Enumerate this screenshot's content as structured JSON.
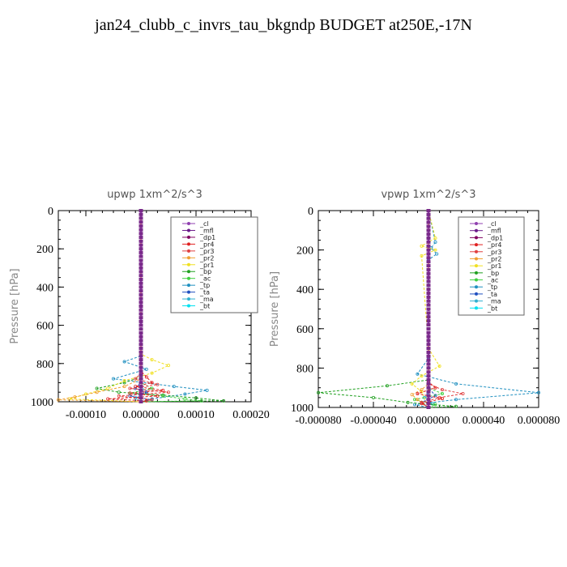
{
  "title": "jan24_clubb_c_invrs_tau_bkgndp  BUDGET at250E,-17N",
  "chart_data": [
    {
      "type": "line",
      "title": "upwp   1xm^2/s^3",
      "ylabel": "Pressure  [hPa]",
      "xlim": [
        -0.00015,
        0.0002
      ],
      "ylim": [
        1000,
        0
      ],
      "xticks": [
        "-0.00010",
        "0.00000",
        "0.00010",
        "0.00020"
      ],
      "xtick_values": [
        -0.0001,
        0,
        0.0001,
        0.0002
      ],
      "yticks": [
        "0",
        "200",
        "400",
        "600",
        "800",
        "1000"
      ],
      "ytick_values": [
        0,
        200,
        400,
        600,
        800,
        1000
      ],
      "legend_position": "top-right",
      "series": [
        {
          "name": "_cl",
          "color": "#9040b0",
          "marker": "*",
          "x": [
            0,
            0
          ],
          "y": [
            0,
            1000
          ]
        },
        {
          "name": "_mfl",
          "color": "#6a1a8a",
          "marker": "*",
          "x": [
            0,
            0
          ],
          "y": [
            0,
            1000
          ]
        },
        {
          "name": "_dp1",
          "color": "#800060",
          "marker": "o",
          "x": [
            0,
            0
          ],
          "y": [
            0,
            1000
          ]
        },
        {
          "name": "_pr4",
          "color": "#e02020",
          "marker": "o",
          "x": [
            0,
            0,
            1e-05,
            2e-05,
            -1e-05,
            4e-05,
            -2e-05,
            3e-05,
            -6e-05,
            1e-05,
            0
          ],
          "y": [
            0,
            840,
            870,
            900,
            920,
            940,
            955,
            970,
            985,
            995,
            1000
          ]
        },
        {
          "name": "_pr3",
          "color": "#e04040",
          "marker": "v",
          "x": [
            0,
            0,
            -1e-05,
            3e-05,
            -2e-05,
            5e-05,
            -4e-05,
            2e-05,
            0
          ],
          "y": [
            0,
            850,
            880,
            910,
            930,
            950,
            970,
            990,
            1000
          ]
        },
        {
          "name": "_pr2",
          "color": "#f0a030",
          "marker": "^",
          "x": [
            0,
            0,
            -3e-05,
            -8e-05,
            -0.00012,
            -0.00015,
            0
          ],
          "y": [
            0,
            880,
            920,
            950,
            975,
            990,
            1000
          ]
        },
        {
          "name": "_pr1",
          "color": "#f0e020",
          "marker": "o",
          "x": [
            0,
            0,
            2e-05,
            5e-05,
            2e-05,
            -3e-05,
            -6e-05,
            -0.0001,
            -0.00013,
            0
          ],
          "y": [
            0,
            750,
            780,
            810,
            850,
            890,
            930,
            960,
            985,
            1000
          ]
        },
        {
          "name": "_bp",
          "color": "#20a020",
          "marker": "*",
          "x": [
            0,
            0,
            -3e-05,
            -8e-05,
            -4e-05,
            4e-05,
            0.0001,
            0.00015,
            0
          ],
          "y": [
            0,
            870,
            900,
            930,
            950,
            965,
            980,
            995,
            1000
          ]
        },
        {
          "name": "_ac",
          "color": "#40d040",
          "marker": "o",
          "x": [
            0,
            0,
            2e-05,
            -2e-05,
            4e-05,
            8e-05,
            0.00011,
            0
          ],
          "y": [
            0,
            900,
            930,
            955,
            970,
            985,
            995,
            1000
          ]
        },
        {
          "name": "_tp",
          "color": "#2090c0",
          "marker": "*",
          "x": [
            0,
            0,
            -3e-05,
            1e-05,
            -5e-05,
            6e-05,
            0.00012,
            8e-05,
            2e-05,
            0
          ],
          "y": [
            0,
            760,
            790,
            830,
            880,
            920,
            940,
            960,
            985,
            1000
          ]
        },
        {
          "name": "_ta",
          "color": "#2050c0",
          "marker": ">",
          "x": [
            0,
            0,
            -1e-05,
            1e-05,
            -2e-05,
            2e-05,
            0
          ],
          "y": [
            0,
            900,
            930,
            950,
            970,
            990,
            1000
          ]
        },
        {
          "name": "_ma",
          "color": "#30b0d0",
          "marker": "-",
          "x": [
            0,
            0,
            1e-05,
            -1e-05,
            0
          ],
          "y": [
            0,
            920,
            950,
            980,
            1000
          ]
        },
        {
          "name": "_bt",
          "color": "#00e0f0",
          "marker": "o",
          "x": [
            0,
            0
          ],
          "y": [
            0,
            1000
          ]
        }
      ]
    },
    {
      "type": "line",
      "title": "vpwp   1xm^2/s^3",
      "ylabel": "Pressure  [hPa]",
      "xlim": [
        -8e-05,
        8e-05
      ],
      "ylim": [
        1000,
        0
      ],
      "xticks": [
        "-0.000080",
        "-0.000040",
        "0.000000",
        "0.000040",
        "0.000080"
      ],
      "xtick_values": [
        -8e-05,
        -4e-05,
        0,
        4e-05,
        8e-05
      ],
      "yticks": [
        "0",
        "200",
        "400",
        "600",
        "800",
        "1000"
      ],
      "ytick_values": [
        0,
        200,
        400,
        600,
        800,
        1000
      ],
      "legend_position": "top-right",
      "series": [
        {
          "name": "_cl",
          "color": "#9040b0",
          "marker": "*",
          "x": [
            0,
            0
          ],
          "y": [
            0,
            1000
          ]
        },
        {
          "name": "_mfl",
          "color": "#6a1a8a",
          "marker": "*",
          "x": [
            0,
            0
          ],
          "y": [
            0,
            1000
          ]
        },
        {
          "name": "_dp1",
          "color": "#800060",
          "marker": "o",
          "x": [
            0,
            0
          ],
          "y": [
            0,
            1000
          ]
        },
        {
          "name": "_pr4",
          "color": "#e02020",
          "marker": "o",
          "x": [
            0,
            0,
            5e-06,
            -8e-06,
            1e-05,
            -5e-06,
            0
          ],
          "y": [
            0,
            870,
            900,
            930,
            955,
            980,
            1000
          ]
        },
        {
          "name": "_pr3",
          "color": "#e04040",
          "marker": "v",
          "x": [
            0,
            0,
            1e-05,
            2.5e-05,
            8e-06,
            -5e-06,
            0
          ],
          "y": [
            0,
            880,
            910,
            930,
            950,
            975,
            1000
          ]
        },
        {
          "name": "_pr2",
          "color": "#f0a030",
          "marker": "^",
          "x": [
            0,
            0,
            -5e-06,
            -1.2e-05,
            -8e-06,
            0
          ],
          "y": [
            0,
            880,
            910,
            935,
            960,
            1000
          ]
        },
        {
          "name": "_pr1",
          "color": "#f0e020",
          "marker": "o",
          "x": [
            0,
            5e-06,
            -5e-06,
            5e-06,
            -5e-06,
            0,
            8e-06,
            -5e-06,
            -1.2e-05,
            -5e-06,
            0
          ],
          "y": [
            0,
            140,
            180,
            200,
            230,
            700,
            790,
            840,
            880,
            920,
            1000
          ]
        },
        {
          "name": "_bp",
          "color": "#20a020",
          "marker": "*",
          "x": [
            0,
            0,
            -3e-05,
            -8e-05,
            -4e-05,
            -1.5e-05,
            2e-05,
            0
          ],
          "y": [
            0,
            860,
            890,
            925,
            950,
            975,
            995,
            1000
          ]
        },
        {
          "name": "_ac",
          "color": "#40d040",
          "marker": "o",
          "x": [
            0,
            0,
            1e-05,
            -1e-05,
            5e-06,
            0
          ],
          "y": [
            0,
            900,
            930,
            960,
            985,
            1000
          ]
        },
        {
          "name": "_tp",
          "color": "#2090c0",
          "marker": "*",
          "x": [
            0,
            5e-06,
            2e-06,
            6e-06,
            0,
            0,
            -8e-06,
            2e-05,
            8e-05,
            2e-05,
            -1e-05,
            0
          ],
          "y": [
            0,
            160,
            190,
            220,
            250,
            750,
            830,
            880,
            925,
            960,
            985,
            1000
          ]
        },
        {
          "name": "_ta",
          "color": "#2050c0",
          "marker": ">",
          "x": [
            0,
            0,
            5e-06,
            -5e-06,
            0
          ],
          "y": [
            0,
            900,
            940,
            975,
            1000
          ]
        },
        {
          "name": "_ma",
          "color": "#30b0d0",
          "marker": "-",
          "x": [
            0,
            0,
            -3e-06,
            3e-06,
            0
          ],
          "y": [
            0,
            920,
            950,
            980,
            1000
          ]
        },
        {
          "name": "_bt",
          "color": "#00e0f0",
          "marker": "o",
          "x": [
            0,
            0
          ],
          "y": [
            0,
            1000
          ]
        }
      ]
    }
  ]
}
